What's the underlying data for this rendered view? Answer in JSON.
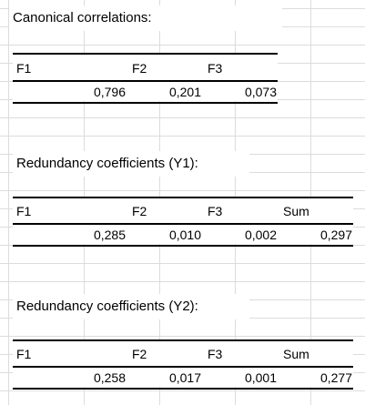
{
  "sections": [
    {
      "title": "Canonical correlations:",
      "headers": [
        "F1",
        "F2",
        "F3"
      ],
      "values": [
        "0,796",
        "0,201",
        "0,073"
      ]
    },
    {
      "title": "Redundancy coefficients (Y1):",
      "headers": [
        "F1",
        "F2",
        "F3",
        "Sum"
      ],
      "values": [
        "0,285",
        "0,010",
        "0,002",
        "0,297"
      ]
    },
    {
      "title": "Redundancy coefficients (Y2):",
      "headers": [
        "F1",
        "F2",
        "F3",
        "Sum"
      ],
      "values": [
        "0,258",
        "0,017",
        "0,001",
        "0,277"
      ]
    }
  ]
}
